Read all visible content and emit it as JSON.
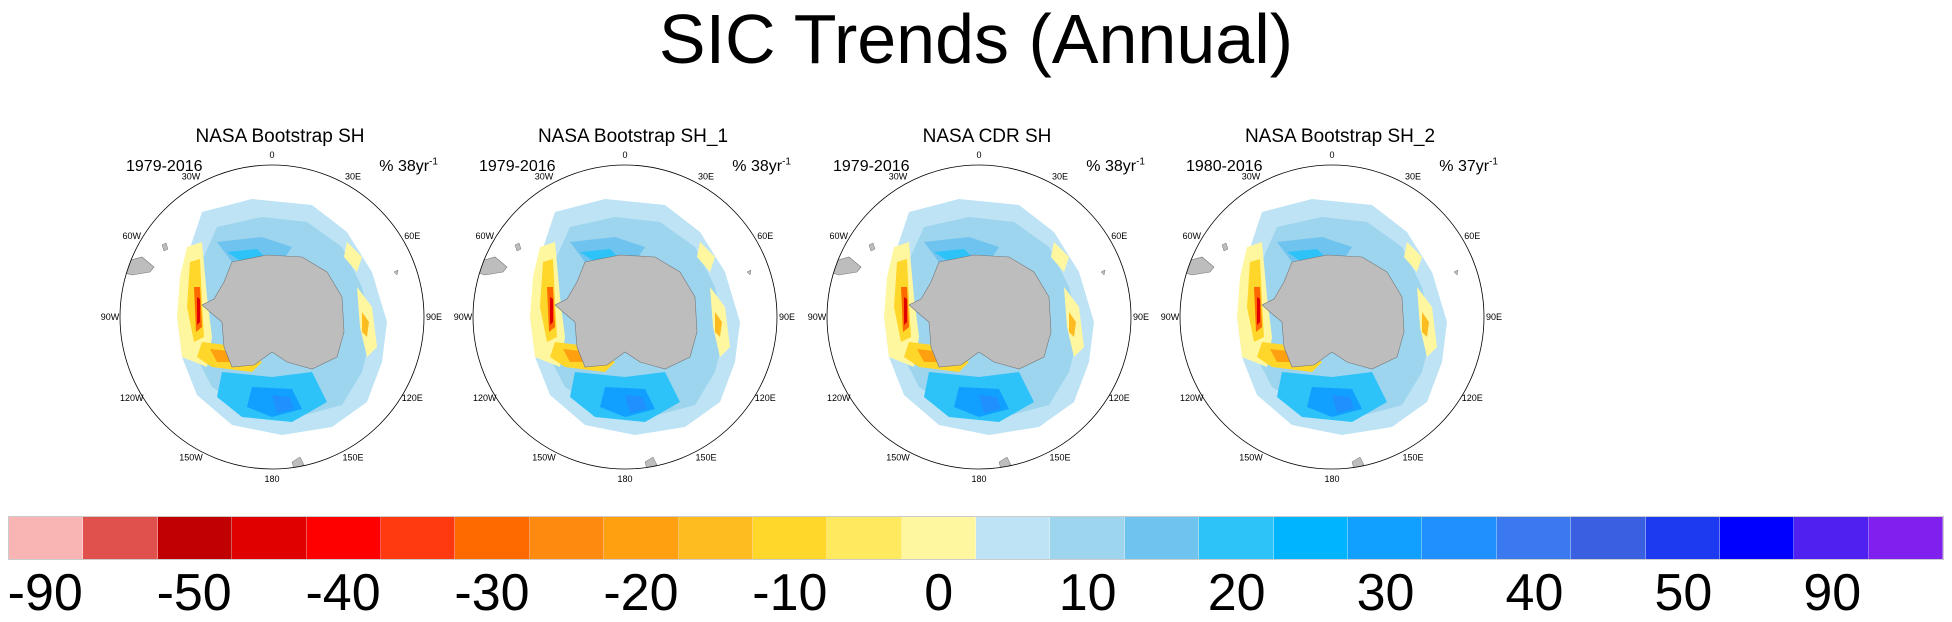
{
  "title": "SIC Trends (Annual)",
  "panels": [
    {
      "title": "NASA Bootstrap SH",
      "period": "1979-2016",
      "units_prefix": "% 38yr",
      "units_exp": "-1"
    },
    {
      "title": "NASA Bootstrap SH_1",
      "period": "1979-2016",
      "units_prefix": "% 38yr",
      "units_exp": "-1"
    },
    {
      "title": "NASA CDR SH",
      "period": "1979-2016",
      "units_prefix": "% 38yr",
      "units_exp": "-1"
    },
    {
      "title": "NASA Bootstrap SH_2",
      "period": "1980-2016",
      "units_prefix": "% 37yr",
      "units_exp": "-1"
    }
  ],
  "longitude_labels": [
    "0",
    "30E",
    "60E",
    "90E",
    "120E",
    "150E",
    "180",
    "150W",
    "120W",
    "90W",
    "60W",
    "30W"
  ],
  "colorbar": {
    "colors": [
      "#f9b4b4",
      "#e0504c",
      "#c00000",
      "#e00000",
      "#ff0000",
      "#ff3a10",
      "#ff6a00",
      "#ff8a10",
      "#ffa010",
      "#ffbc20",
      "#ffd62a",
      "#ffe95e",
      "#fff7a0",
      "#bde3f5",
      "#9dd4ee",
      "#6fc3ef",
      "#2dc3f8",
      "#00b4ff",
      "#11a0ff",
      "#2090ff",
      "#3a79ef",
      "#3a5fe0",
      "#1e3af0",
      "#0000ff",
      "#5020f0",
      "#8020ef"
    ],
    "labels": [
      "-90",
      "-50",
      "-40",
      "-30",
      "-20",
      "-10",
      "0",
      "10",
      "20",
      "30",
      "40",
      "50",
      "90"
    ]
  },
  "colors": {
    "land": "#bdbdbd",
    "ocean": "#ffffff"
  }
}
